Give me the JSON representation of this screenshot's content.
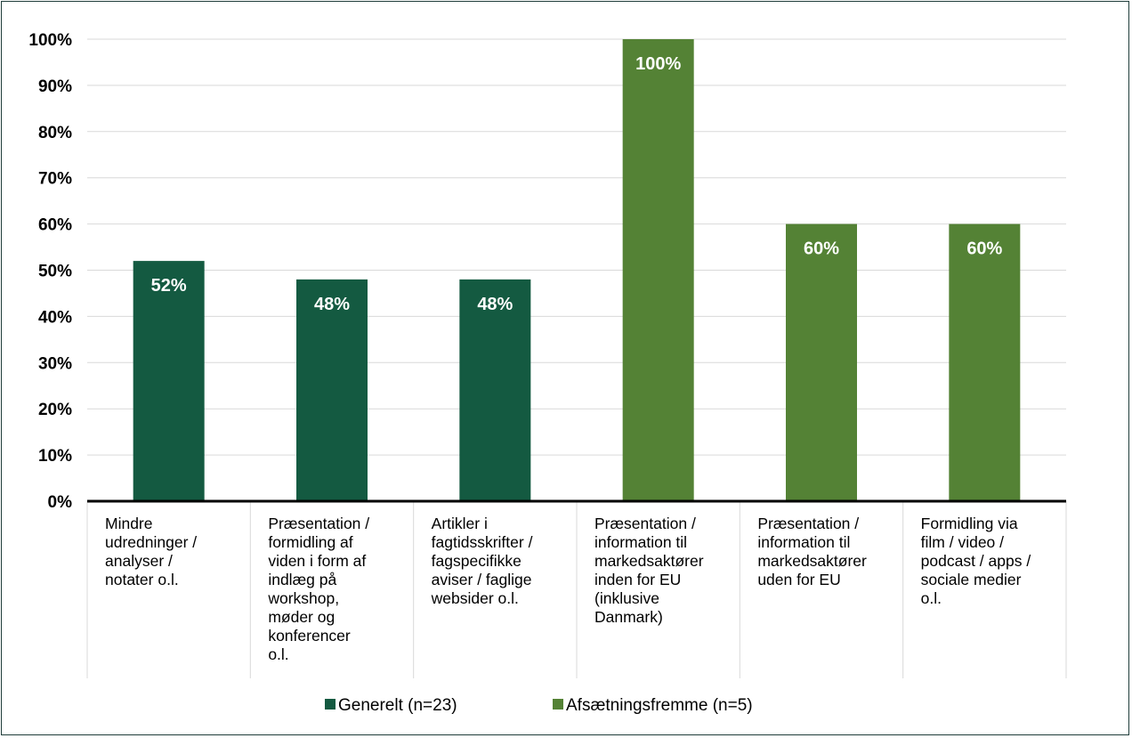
{
  "chart_data": {
    "type": "bar",
    "title": "",
    "xlabel": "",
    "ylabel": "",
    "ylim": [
      0,
      100
    ],
    "y_ticks": [
      "0%",
      "10%",
      "20%",
      "30%",
      "40%",
      "50%",
      "60%",
      "70%",
      "80%",
      "90%",
      "100%"
    ],
    "grid": true,
    "legend_position": "bottom",
    "colors": {
      "Generelt (n=23)": "#145a41",
      "Afsætningsfremme (n=5)": "#548235"
    },
    "categories": [
      [
        "Mindre",
        "udredninger /",
        "analyser /",
        "notater o.l."
      ],
      [
        "Præsentation /",
        "formidling af",
        "viden i form af",
        "indlæg på",
        "workshop,",
        "møder og",
        "konferencer",
        "o.l."
      ],
      [
        "Artikler i",
        "fagtidsskrifter /",
        "fagspecifikke",
        "aviser / faglige",
        "websider o.l."
      ],
      [
        "Præsentation /",
        "information til",
        "markedsaktører",
        "inden for EU",
        "(inklusive",
        "Danmark)"
      ],
      [
        "Præsentation /",
        "information til",
        "markedsaktører",
        "uden for EU"
      ],
      [
        "Formidling via",
        "film / video /",
        "podcast / apps /",
        "sociale medier",
        "o.l."
      ]
    ],
    "series": [
      {
        "name": "Generelt (n=23)",
        "values": [
          52,
          48,
          48,
          null,
          null,
          null
        ],
        "labels": [
          "52%",
          "48%",
          "48%",
          "",
          "",
          ""
        ]
      },
      {
        "name": "Afsætningsfremme (n=5)",
        "values": [
          null,
          null,
          null,
          100,
          60,
          60
        ],
        "labels": [
          "",
          "",
          "",
          "100%",
          "60%",
          "60%"
        ]
      }
    ]
  }
}
